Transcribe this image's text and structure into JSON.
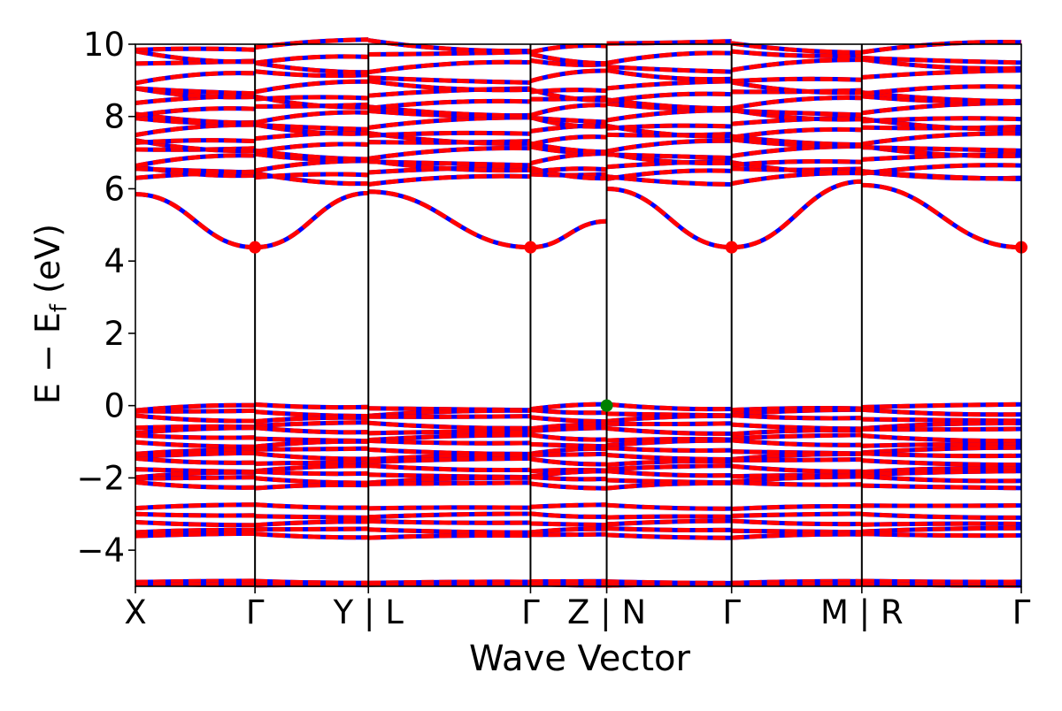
{
  "chart_data": {
    "type": "line",
    "title": "",
    "xlabel": "Wave Vector",
    "ylabel": "E − E",
    "ylabel_sub": "f",
    "ylabel_unit": " (eV)",
    "xlim": [
      0,
      1
    ],
    "ylim": [
      -5,
      10
    ],
    "grid": false,
    "yticks": [
      -4,
      -2,
      0,
      2,
      4,
      6,
      8,
      10
    ],
    "ytick_labels": [
      "−4",
      "−2",
      "0",
      "2",
      "4",
      "6",
      "8",
      "10"
    ],
    "kpoints": [
      {
        "label": "X",
        "pos": 0.0
      },
      {
        "label": "Γ",
        "pos": 0.135
      },
      {
        "label": "Y | L",
        "pos": 0.263
      },
      {
        "label": "Γ",
        "pos": 0.446
      },
      {
        "label": "Z | N",
        "pos": 0.532
      },
      {
        "label": "Γ",
        "pos": 0.673
      },
      {
        "label": "M | R",
        "pos": 0.82
      },
      {
        "label": "Γ",
        "pos": 1.0
      }
    ],
    "colors": {
      "spin_up": "#ff0000",
      "spin_down": "#0000ff",
      "cbm": "#ff0000",
      "vbm": "#008000",
      "axis": "#000000"
    },
    "segments": [
      {
        "from": 0.0,
        "to": 0.135
      },
      {
        "from": 0.135,
        "to": 0.263
      },
      {
        "from": 0.263,
        "to": 0.446
      },
      {
        "from": 0.446,
        "to": 0.532
      },
      {
        "from": 0.532,
        "to": 0.673
      },
      {
        "from": 0.673,
        "to": 0.82
      },
      {
        "from": 0.82,
        "to": 1.0
      }
    ],
    "conduction_band_minimum": {
      "energy": 4.38,
      "points": [
        0.135,
        0.446,
        0.673,
        1.0
      ],
      "segment_endpoints": [
        [
          5.85,
          4.38
        ],
        [
          4.38,
          5.88
        ],
        [
          5.92,
          4.38
        ],
        [
          4.38,
          5.1
        ],
        [
          6.0,
          4.38
        ],
        [
          4.38,
          6.2
        ],
        [
          6.1,
          4.38
        ]
      ]
    },
    "valence_band_maximum": {
      "x": 0.532,
      "energy": 0.0
    },
    "upper_band_levels": [
      6.3,
      6.45,
      6.6,
      6.8,
      7.0,
      7.2,
      7.4,
      7.6,
      7.8,
      8.0,
      8.2,
      8.4,
      8.6,
      8.8,
      9.1,
      9.4,
      9.65,
      9.95
    ],
    "valence_band_levels": [
      -0.05,
      -0.2,
      -0.35,
      -0.55,
      -0.7,
      -0.9,
      -1.05,
      -1.25,
      -1.4,
      -1.55,
      -1.75,
      -1.9,
      -2.05,
      -2.2
    ],
    "semicore_band_levels": [
      -2.8,
      -3.05,
      -3.25,
      -3.45,
      -3.6
    ],
    "deep_band_levels": [
      -4.88,
      -4.95
    ]
  }
}
